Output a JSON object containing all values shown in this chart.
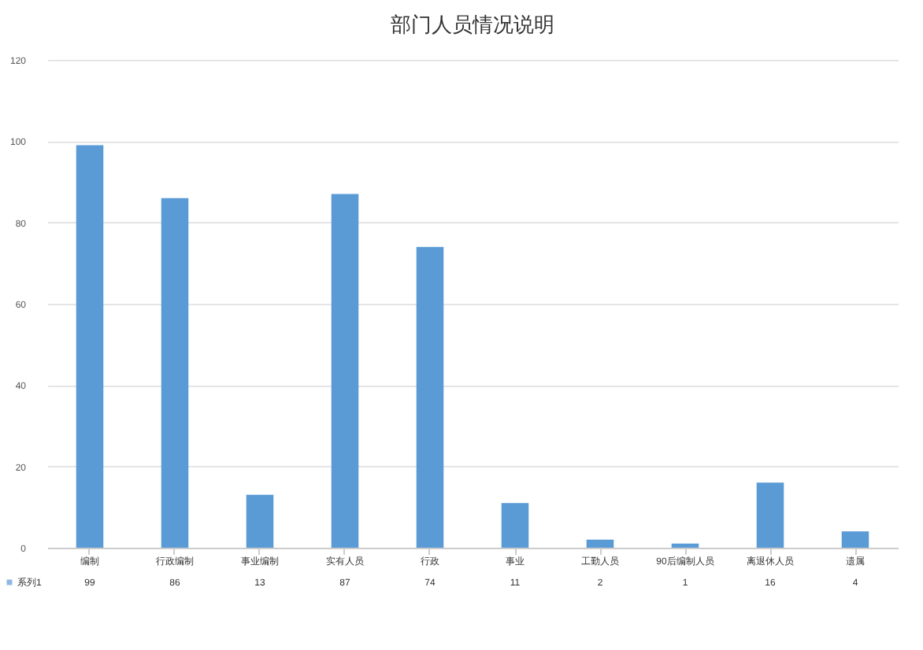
{
  "chart_data": {
    "type": "bar",
    "title": "部门人员情况说明",
    "categories": [
      "编制",
      "行政编制",
      "事业编制",
      "实有人员",
      "行政",
      "事业",
      "工勤人员",
      "90后编制人员",
      "离退休人员",
      "遗属"
    ],
    "series": [
      {
        "name": "系列1",
        "color": "#5b9bd5",
        "values": [
          99,
          86,
          13,
          87,
          74,
          11,
          2,
          1,
          16,
          4
        ]
      }
    ],
    "ylim": [
      0,
      120
    ],
    "yticks": [
      0,
      20,
      40,
      60,
      80,
      100,
      120
    ],
    "grid": "y",
    "legend": "bottom",
    "data_labels": true
  }
}
